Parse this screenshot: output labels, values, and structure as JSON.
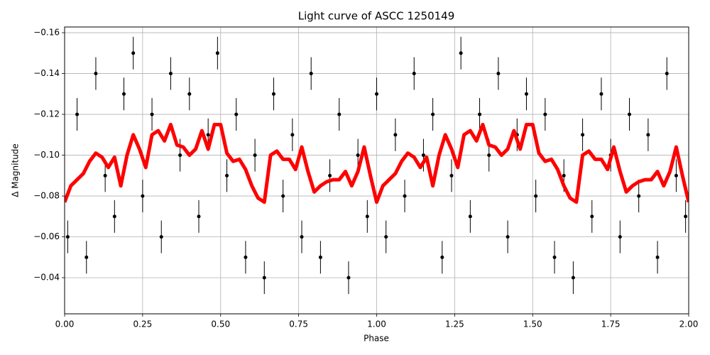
{
  "chart_data": {
    "type": "errorbar",
    "title": "Light curve of ASCC 1250149",
    "xlabel": "Phase",
    "ylabel": "Δ Magnitude",
    "grid": true,
    "xlim": [
      0,
      2
    ],
    "ylim": [
      -0.0223,
      -0.1628
    ],
    "xticks": [
      {
        "value": 0,
        "label": "0.00"
      },
      {
        "value": 0.25,
        "label": "0.25"
      },
      {
        "value": 0.5,
        "label": "0.50"
      },
      {
        "value": 0.75,
        "label": "0.75"
      },
      {
        "value": 1,
        "label": "1.00"
      },
      {
        "value": 1.25,
        "label": "1.25"
      },
      {
        "value": 1.5,
        "label": "1.50"
      },
      {
        "value": 1.75,
        "label": "1.75"
      },
      {
        "value": 2,
        "label": "2.00"
      }
    ],
    "yticks": [
      {
        "value": -0.16,
        "label": "−0.16"
      },
      {
        "value": -0.14,
        "label": "−0.14"
      },
      {
        "value": -0.12,
        "label": "−0.12"
      },
      {
        "value": -0.1,
        "label": "−0.10"
      },
      {
        "value": -0.08,
        "label": "−0.08"
      },
      {
        "value": -0.06,
        "label": "−0.06"
      },
      {
        "value": -0.04,
        "label": "−0.04"
      }
    ],
    "points": {
      "color": "#000000",
      "yerr": 0.008,
      "x": [
        0.01,
        0.04,
        0.07,
        0.1,
        0.13,
        0.16,
        0.19,
        0.22,
        0.25,
        0.28,
        0.31,
        0.34,
        0.37,
        0.4,
        0.43,
        0.46,
        0.49,
        0.52,
        0.55,
        0.58,
        0.61,
        0.64,
        0.67,
        0.7,
        0.73,
        0.76,
        0.79,
        0.82,
        0.85,
        0.88,
        0.91,
        0.94,
        0.97,
        1.0,
        1.03,
        1.06,
        1.09,
        1.12,
        1.15,
        1.18,
        1.21,
        1.24,
        1.27,
        1.3,
        1.33,
        1.36,
        1.39,
        1.42,
        1.45,
        1.48,
        1.51,
        1.54,
        1.57,
        1.6,
        1.63,
        1.66,
        1.69,
        1.72,
        1.75,
        1.78,
        1.81,
        1.84,
        1.87,
        1.9,
        1.93,
        1.96,
        1.99
      ],
      "y": [
        -0.06,
        -0.12,
        -0.05,
        -0.14,
        -0.09,
        -0.07,
        -0.13,
        -0.15,
        -0.08,
        -0.12,
        -0.06,
        -0.14,
        -0.1,
        -0.13,
        -0.07,
        -0.11,
        -0.15,
        -0.09,
        -0.12,
        -0.05,
        -0.1,
        -0.04,
        -0.13,
        -0.08,
        -0.11,
        -0.06,
        -0.14,
        -0.05,
        -0.09,
        -0.12,
        -0.04,
        -0.1,
        -0.07,
        -0.13,
        -0.06,
        -0.11,
        -0.08,
        -0.14,
        -0.1,
        -0.12,
        -0.05,
        -0.09,
        -0.15,
        -0.07,
        -0.12,
        -0.1,
        -0.14,
        -0.06,
        -0.11,
        -0.13,
        -0.08,
        -0.12,
        -0.05,
        -0.09,
        -0.04,
        -0.11,
        -0.07,
        -0.13,
        -0.1,
        -0.06,
        -0.12,
        -0.08,
        -0.11,
        -0.05,
        -0.14,
        -0.09,
        -0.07
      ]
    },
    "curve": {
      "color": "#ff0000",
      "x": [
        0,
        0.02,
        0.04,
        0.06,
        0.08,
        0.1,
        0.12,
        0.14,
        0.16,
        0.18,
        0.2,
        0.22,
        0.24,
        0.26,
        0.28,
        0.3,
        0.32,
        0.34,
        0.36,
        0.38,
        0.4,
        0.42,
        0.44,
        0.46,
        0.48,
        0.5,
        0.52,
        0.54,
        0.56,
        0.58,
        0.6,
        0.62,
        0.64,
        0.66,
        0.68,
        0.7,
        0.72,
        0.74,
        0.76,
        0.78,
        0.8,
        0.82,
        0.84,
        0.86,
        0.88,
        0.9,
        0.92,
        0.94,
        0.96,
        0.98,
        1.0,
        1.02,
        1.04,
        1.06,
        1.08,
        1.1,
        1.12,
        1.14,
        1.16,
        1.18,
        1.2,
        1.22,
        1.24,
        1.26,
        1.28,
        1.3,
        1.32,
        1.34,
        1.36,
        1.38,
        1.4,
        1.42,
        1.44,
        1.46,
        1.48,
        1.5,
        1.52,
        1.54,
        1.56,
        1.58,
        1.6,
        1.62,
        1.64,
        1.66,
        1.68,
        1.7,
        1.72,
        1.74,
        1.76,
        1.78,
        1.8,
        1.82,
        1.84,
        1.86,
        1.88,
        1.9,
        1.92,
        1.94,
        1.96,
        1.98,
        2.0
      ],
      "values": [
        -0.077,
        -0.085,
        -0.088,
        -0.091,
        -0.097,
        -0.101,
        -0.099,
        -0.094,
        -0.099,
        -0.085,
        -0.1,
        -0.11,
        -0.103,
        -0.094,
        -0.11,
        -0.112,
        -0.107,
        -0.115,
        -0.105,
        -0.104,
        -0.1,
        -0.103,
        -0.112,
        -0.103,
        -0.115,
        -0.115,
        -0.101,
        -0.097,
        -0.098,
        -0.093,
        -0.085,
        -0.079,
        -0.077,
        -0.1,
        -0.102,
        -0.098,
        -0.098,
        -0.093,
        -0.104,
        -0.092,
        -0.082,
        -0.085,
        -0.087,
        -0.088,
        -0.088,
        -0.092,
        -0.085,
        -0.092,
        -0.104,
        -0.09,
        -0.077,
        -0.085,
        -0.088,
        -0.091,
        -0.097,
        -0.101,
        -0.099,
        -0.094,
        -0.099,
        -0.085,
        -0.1,
        -0.11,
        -0.103,
        -0.094,
        -0.11,
        -0.112,
        -0.107,
        -0.115,
        -0.105,
        -0.104,
        -0.1,
        -0.103,
        -0.112,
        -0.103,
        -0.115,
        -0.115,
        -0.101,
        -0.097,
        -0.098,
        -0.093,
        -0.085,
        -0.079,
        -0.077,
        -0.1,
        -0.102,
        -0.098,
        -0.098,
        -0.093,
        -0.104,
        -0.092,
        -0.082,
        -0.085,
        -0.087,
        -0.088,
        -0.088,
        -0.092,
        -0.085,
        -0.092,
        -0.104,
        -0.09,
        -0.077
      ]
    }
  }
}
